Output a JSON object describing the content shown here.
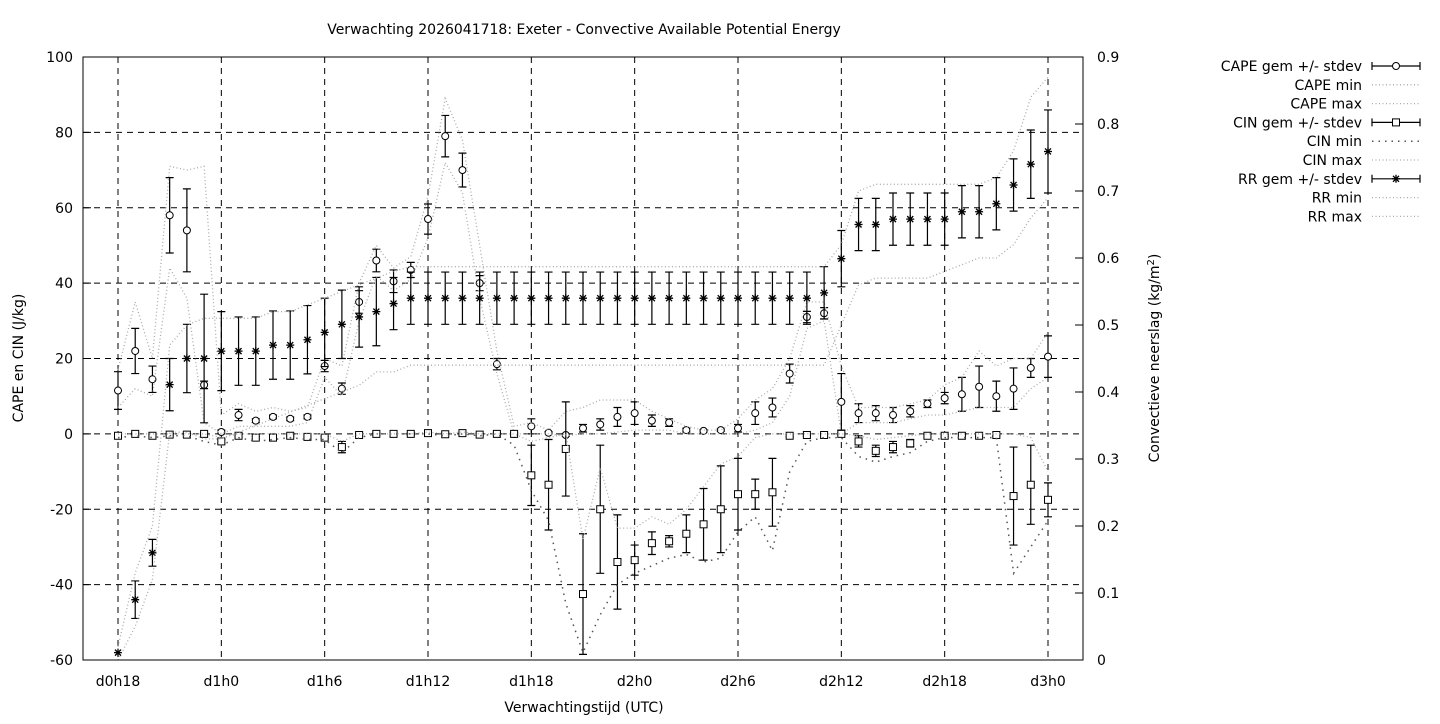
{
  "chart_data": {
    "type": "line",
    "title": "Verwachting 2026041718: Exeter - Convective Available Potential Energy",
    "xlabel": "Verwachtingstijd (UTC)",
    "ylabel": "CAPE en CIN (J/kg)",
    "y2label": "Convectieve neerslag (kg/m",
    "y2label_sup": "2",
    "y2label_end": ")",
    "ylim": [
      -60,
      100
    ],
    "y2lim": [
      0,
      0.9
    ],
    "grid": true,
    "legend_position": "outside-top-right",
    "x_hours_start": 0,
    "x_hours_step": 1,
    "x_ticks": [
      {
        "hour": 0,
        "label": "d0h18"
      },
      {
        "hour": 6,
        "label": "d1h0"
      },
      {
        "hour": 12,
        "label": "d1h6"
      },
      {
        "hour": 18,
        "label": "d1h12"
      },
      {
        "hour": 24,
        "label": "d1h18"
      },
      {
        "hour": 30,
        "label": "d2h0"
      },
      {
        "hour": 36,
        "label": "d2h6"
      },
      {
        "hour": 42,
        "label": "d2h12"
      },
      {
        "hour": 48,
        "label": "d2h18"
      },
      {
        "hour": 54,
        "label": "d3h0"
      }
    ],
    "y_ticks": [
      "-60",
      "-40",
      "-20",
      "0",
      "20",
      "40",
      "60",
      "80",
      "100"
    ],
    "y2_ticks": [
      "0",
      "0.1",
      "0.2",
      "0.3",
      "0.4",
      "0.5",
      "0.6",
      "0.7",
      "0.8",
      "0.9"
    ],
    "series": [
      {
        "name": "CAPE gem +/- stdev",
        "axis": "left",
        "style": "errorbars",
        "marker": "circle",
        "values": [
          11.5,
          22,
          14.5,
          58,
          54,
          13,
          0.5,
          5,
          3.5,
          4.5,
          4,
          4.5,
          18,
          12,
          35,
          46,
          40.5,
          43.5,
          57,
          79,
          70,
          40,
          18.5,
          0,
          2,
          0.3,
          -0.3,
          1.5,
          2.5,
          4.5,
          5.5,
          3.5,
          3,
          1,
          0.8,
          1,
          1.5,
          5.5,
          7,
          16,
          31,
          32,
          8.5,
          5.5,
          5.5,
          5,
          6,
          8,
          9.5,
          10.5,
          12.5,
          10,
          12,
          17.5,
          20.5
        ],
        "stdev": [
          5,
          6,
          3.5,
          10,
          11,
          1,
          0.5,
          1.5,
          0.5,
          0.5,
          0.5,
          0.5,
          1.5,
          1.5,
          3,
          3,
          3,
          2,
          4,
          5.5,
          4.5,
          2,
          1.5,
          0,
          2,
          0.3,
          0.3,
          1,
          1.5,
          2.5,
          3,
          1.5,
          1,
          0.5,
          0.3,
          0.3,
          1,
          3,
          2.5,
          2.5,
          1.5,
          1.5,
          7.5,
          2.5,
          2,
          2,
          1.5,
          1,
          1.5,
          4.5,
          5.5,
          4,
          5.5,
          2.5,
          5.5
        ]
      },
      {
        "name": "CAPE min",
        "axis": "left",
        "style": "dotted",
        "values": [
          7,
          12,
          10,
          44,
          36,
          3,
          0,
          2,
          2,
          2,
          2,
          3,
          15,
          10,
          30,
          42,
          38,
          41,
          52,
          72,
          64,
          36,
          16,
          0,
          0,
          0,
          -0.5,
          0,
          0,
          0.5,
          1,
          1,
          1,
          0,
          0,
          0,
          0,
          1,
          3,
          10,
          28,
          30,
          0,
          3,
          3,
          3,
          4,
          5,
          5,
          6,
          7,
          7,
          7,
          12,
          15
        ]
      },
      {
        "name": "CAPE max",
        "axis": "left",
        "style": "dotted",
        "values": [
          17,
          35,
          20,
          71,
          70,
          71,
          5,
          8,
          6,
          7,
          6,
          7,
          20,
          18,
          40,
          50,
          44,
          47,
          63,
          89,
          78,
          50,
          22,
          2,
          3,
          1,
          6,
          7,
          9,
          9,
          9,
          6,
          4,
          2,
          1,
          1,
          4,
          9,
          12,
          20,
          35,
          35,
          18,
          7,
          7,
          7,
          8,
          9,
          13,
          15,
          22,
          18,
          20,
          20,
          27
        ]
      },
      {
        "name": "CIN gem +/- stdev",
        "axis": "left",
        "style": "errorbars",
        "marker": "square",
        "values": [
          -0.5,
          0,
          -0.5,
          -0.2,
          -0.2,
          0,
          -2,
          -0.5,
          -1,
          -1,
          -0.5,
          -0.8,
          -1,
          -3.5,
          -0.3,
          0,
          0,
          0,
          0.2,
          -0.1,
          0.2,
          -0.2,
          0,
          0,
          -11,
          -13.5,
          -4,
          -42.5,
          -20,
          -34,
          -33.5,
          -29,
          -28.5,
          -26.5,
          -24,
          -20,
          -16,
          -16,
          -15.5,
          -0.5,
          -0.3,
          -0.3,
          0,
          -2,
          -4.5,
          -3.5,
          -2.5,
          -0.5,
          -0.5,
          -0.5,
          -0.5,
          -0.3,
          -16.5,
          -13.5,
          -17.5
        ],
        "stdev": [
          0.3,
          0.3,
          0.3,
          0.3,
          0.3,
          0.3,
          0.5,
          0.3,
          0.3,
          0.3,
          0.3,
          0.3,
          0.3,
          1.5,
          0.3,
          0.3,
          0.3,
          0.3,
          0.3,
          0.3,
          0.3,
          0.3,
          0.3,
          0.3,
          8,
          12,
          12.5,
          16,
          17,
          12.5,
          4,
          3,
          1.5,
          5,
          9.5,
          11.5,
          9.5,
          4,
          9,
          0.3,
          0.3,
          0.3,
          0.3,
          1.5,
          1.5,
          1.5,
          1,
          0.3,
          0.3,
          0.3,
          0.3,
          0.3,
          13,
          10.5,
          4.5
        ]
      },
      {
        "name": "CIN min",
        "axis": "left",
        "style": "dotted-dark",
        "values": [
          -1,
          -0.5,
          -1,
          -0.5,
          -0.5,
          -2,
          -3,
          -1,
          -2,
          -1.5,
          -1,
          -1.5,
          -1.5,
          -5,
          -1,
          0,
          0,
          0,
          0,
          -0.5,
          0,
          -0.5,
          0,
          -3,
          -15,
          -23,
          -45,
          -58,
          -48,
          -40,
          -37,
          -35,
          -33,
          -32,
          -34,
          -33,
          -26,
          -22,
          -31,
          -10,
          -2,
          -1,
          -1,
          -6,
          -7.5,
          -6,
          -5,
          -2,
          -1,
          -1,
          -1,
          -1,
          -37,
          -30,
          -23
        ]
      },
      {
        "name": "CIN max",
        "axis": "left",
        "style": "dotted",
        "values": [
          0,
          0,
          0,
          0,
          0,
          0,
          -1,
          0,
          0,
          0,
          0,
          0,
          0,
          -2,
          0,
          0,
          0,
          0,
          0.5,
          0,
          0.5,
          0,
          0,
          0,
          -2,
          -1,
          0,
          -28,
          -9,
          -25,
          -25,
          -22,
          -24,
          -20,
          -14,
          -8,
          -6,
          -1,
          0,
          0,
          0,
          0,
          0,
          -0.5,
          -1.5,
          -1,
          -0.5,
          0,
          0,
          0,
          0,
          0,
          0,
          -1,
          -10
        ]
      },
      {
        "name": "RR gem +/- stdev",
        "axis": "right",
        "style": "errorbars",
        "marker": "star",
        "values": [
          0.011,
          0.09,
          0.16,
          0.411,
          0.45,
          0.45,
          0.461,
          0.461,
          0.461,
          0.47,
          0.47,
          0.478,
          0.489,
          0.501,
          0.512,
          0.52,
          0.532,
          0.54,
          0.54,
          0.54,
          0.54,
          0.54,
          0.54,
          0.54,
          0.54,
          0.54,
          0.54,
          0.54,
          0.54,
          0.54,
          0.54,
          0.54,
          0.54,
          0.54,
          0.54,
          0.54,
          0.54,
          0.54,
          0.54,
          0.54,
          0.54,
          0.548,
          0.599,
          0.65,
          0.65,
          0.658,
          0.658,
          0.658,
          0.658,
          0.669,
          0.669,
          0.681,
          0.709,
          0.74,
          0.759
        ],
        "stdev": [
          0,
          0.028,
          0.02,
          0.039,
          0.051,
          0.096,
          0.059,
          0.051,
          0.051,
          0.051,
          0.051,
          0.051,
          0.051,
          0.051,
          0.045,
          0.051,
          0.039,
          0.039,
          0.039,
          0.039,
          0.039,
          0.039,
          0.039,
          0.039,
          0.039,
          0.039,
          0.039,
          0.039,
          0.039,
          0.039,
          0.039,
          0.039,
          0.039,
          0.039,
          0.039,
          0.039,
          0.039,
          0.039,
          0.039,
          0.039,
          0.039,
          0.039,
          0.042,
          0.039,
          0.039,
          0.039,
          0.039,
          0.039,
          0.039,
          0.039,
          0.039,
          0.039,
          0.039,
          0.051,
          0.062
        ]
      },
      {
        "name": "RR min",
        "axis": "right",
        "style": "dotted",
        "values": [
          0,
          0.05,
          0.12,
          0.34,
          0.34,
          0.33,
          0.33,
          0.34,
          0.35,
          0.36,
          0.37,
          0.38,
          0.39,
          0.4,
          0.41,
          0.43,
          0.43,
          0.44,
          0.44,
          0.44,
          0.44,
          0.44,
          0.44,
          0.44,
          0.44,
          0.44,
          0.44,
          0.44,
          0.44,
          0.44,
          0.44,
          0.44,
          0.44,
          0.44,
          0.44,
          0.44,
          0.44,
          0.44,
          0.44,
          0.44,
          0.44,
          0.44,
          0.5,
          0.56,
          0.57,
          0.57,
          0.57,
          0.57,
          0.58,
          0.59,
          0.6,
          0.6,
          0.62,
          0.66,
          0.69
        ]
      },
      {
        "name": "RR max",
        "axis": "right",
        "style": "dotted",
        "values": [
          0.02,
          0.13,
          0.2,
          0.47,
          0.5,
          0.51,
          0.51,
          0.51,
          0.51,
          0.52,
          0.52,
          0.53,
          0.54,
          0.55,
          0.56,
          0.57,
          0.58,
          0.587,
          0.587,
          0.587,
          0.587,
          0.587,
          0.587,
          0.587,
          0.587,
          0.587,
          0.587,
          0.587,
          0.587,
          0.587,
          0.587,
          0.587,
          0.587,
          0.587,
          0.587,
          0.587,
          0.587,
          0.587,
          0.587,
          0.587,
          0.587,
          0.587,
          0.62,
          0.7,
          0.71,
          0.71,
          0.71,
          0.71,
          0.71,
          0.71,
          0.71,
          0.72,
          0.76,
          0.84,
          0.87
        ]
      }
    ]
  }
}
